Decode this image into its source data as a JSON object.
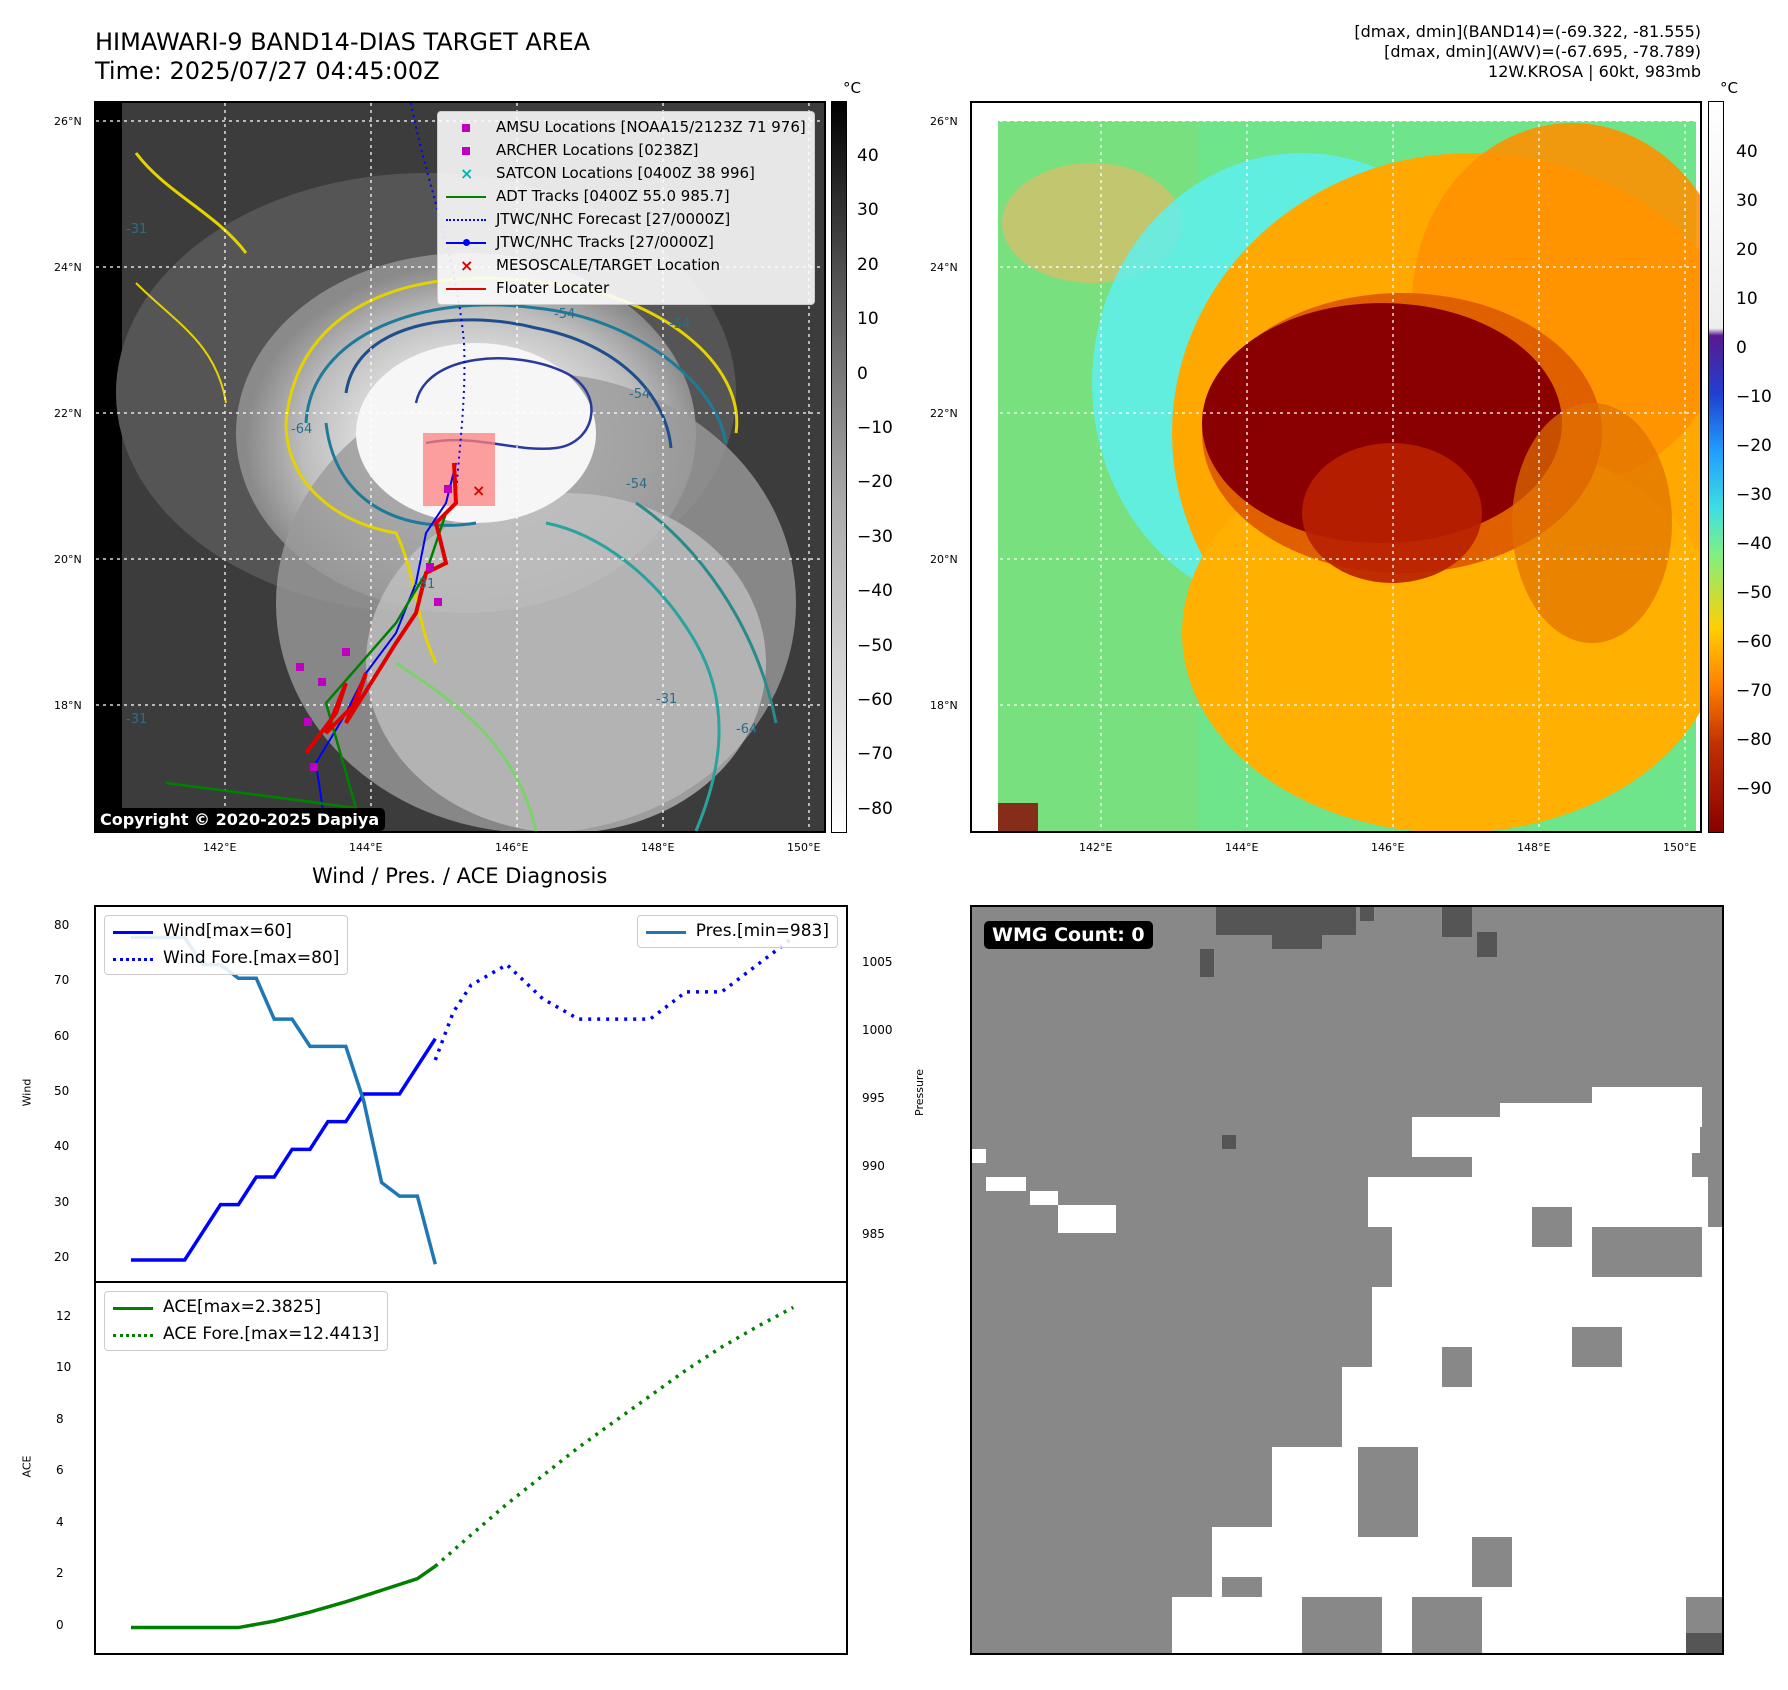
{
  "header": {
    "title_line1": "HIMAWARI-9 BAND14-DIAS TARGET AREA",
    "title_line2": "Time: 2025/07/27 04:45:00Z",
    "right_line1": "[dmax, dmin](BAND14)=(-69.322, -81.555)",
    "right_line2": "[dmax, dmin](AWV)=(-67.695, -78.789)",
    "right_line3": "12W.KROSA | 60kt, 983mb"
  },
  "map": {
    "lat_labels": [
      "26°N",
      "24°N",
      "22°N",
      "20°N",
      "18°N"
    ],
    "lon_labels": [
      "142°E",
      "144°E",
      "146°E",
      "148°E",
      "150°E"
    ],
    "copyright": "Copyright © 2020-2025 Dapiya",
    "contour_labels": [
      "-54",
      "-54",
      "-54",
      "-64",
      "-31",
      "-54",
      "-64",
      "-31",
      "-31",
      "-31"
    ],
    "legend": [
      {
        "label": "AMSU Locations [NOAA15/2123Z 71 976]",
        "marker": "square",
        "color": "#c000c0"
      },
      {
        "label": "ARCHER Locations [0238Z]",
        "marker": "square",
        "color": "#c000c0"
      },
      {
        "label": "SATCON Locations [0400Z 38 996]",
        "marker": "x",
        "color": "#00b8b8"
      },
      {
        "label": "ADT Tracks [0400Z 55.0 985.7]",
        "marker": "line",
        "color": "#008000"
      },
      {
        "label": "JTWC/NHC Forecast [27/0000Z]",
        "marker": "dotted",
        "color": "#0000ff"
      },
      {
        "label": "JTWC/NHC Tracks [27/0000Z]",
        "marker": "line-dot",
        "color": "#0000ff"
      },
      {
        "label": "MESOSCALE/TARGET Location",
        "marker": "x",
        "color": "#e00000"
      },
      {
        "label": "Floater Locater",
        "marker": "line",
        "color": "#e00000"
      }
    ]
  },
  "colorbar_left": {
    "unit": "°C",
    "ticks": [
      "40",
      "30",
      "20",
      "10",
      "0",
      "−10",
      "−20",
      "−30",
      "−40",
      "−50",
      "−60",
      "−70",
      "−80"
    ]
  },
  "colorbar_right": {
    "unit": "°C",
    "ticks": [
      "40",
      "30",
      "20",
      "10",
      "0",
      "−10",
      "−20",
      "−30",
      "−40",
      "−50",
      "−60",
      "−70",
      "−80",
      "−90"
    ]
  },
  "diag": {
    "title": "Wind / Pres. / ACE Diagnosis",
    "wind_axis_label": "Wind",
    "pressure_axis_label": "Pressure",
    "ace_axis_label": "ACE",
    "wind_ticks": [
      "80",
      "70",
      "60",
      "50",
      "40",
      "30",
      "20"
    ],
    "pres_ticks": [
      "1005",
      "1000",
      "995",
      "990",
      "985"
    ],
    "ace_ticks": [
      "12",
      "10",
      "8",
      "6",
      "4",
      "2",
      "0"
    ],
    "legend_wind": "Wind[max=60]",
    "legend_wind_fore": "Wind Fore.[max=80]",
    "legend_pres": "Pres.[min=983]",
    "legend_ace": "ACE[max=2.3825]",
    "legend_ace_fore": "ACE Fore.[max=12.4413]"
  },
  "wmg": {
    "label": "WMG Count: 0"
  },
  "colors": {
    "wind": "#0000ff",
    "pressure": "#1f77b4",
    "ace": "#007f00",
    "gray_fill": "#888888",
    "dark_fill": "#555555"
  },
  "chart_data": [
    {
      "type": "line",
      "series": [
        {
          "name": "Wind[max=60]",
          "x": [
            0,
            1,
            2,
            3,
            4,
            5,
            6,
            7,
            8,
            9,
            10,
            11,
            12,
            13,
            14,
            15,
            16,
            17
          ],
          "values": [
            20,
            20,
            20,
            20,
            25,
            30,
            30,
            35,
            35,
            40,
            40,
            45,
            45,
            50,
            50,
            50,
            55,
            60
          ]
        },
        {
          "name": "Wind Fore.[max=80]"
        },
        {
          "name": "Pres.[min=983]",
          "x": [
            0,
            1,
            2,
            3,
            4,
            5,
            6,
            7,
            8,
            9,
            10,
            11,
            12,
            13,
            14,
            15,
            16,
            17
          ],
          "values": [
            1007,
            1007,
            1007,
            1007,
            1005,
            1005,
            1004,
            1004,
            1001,
            1001,
            999,
            999,
            999,
            995,
            989,
            988,
            988,
            983
          ]
        }
      ],
      "ylabel": "Wind",
      "ylim": [
        18,
        82
      ]
    },
    {
      "type": "line",
      "series": [
        {
          "name": "ACE[max=2.3825]",
          "x": [
            0,
            2,
            4,
            6,
            8,
            10,
            12,
            14,
            16,
            17
          ],
          "values": [
            0,
            0,
            0,
            0,
            0.25,
            0.6,
            1.0,
            1.45,
            1.9,
            2.3825
          ]
        },
        {
          "name": "ACE Fore.[max=12.4413]",
          "x": [
            17,
            19,
            21,
            23,
            25,
            27,
            29,
            31,
            33,
            35,
            37
          ],
          "values": [
            2.3825,
            3.6,
            4.8,
            5.9,
            7.0,
            8.0,
            9.0,
            10.0,
            10.9,
            11.7,
            12.4413
          ]
        }
      ],
      "ylabel": "ACE",
      "ylim": [
        -0.6,
        13
      ]
    }
  ]
}
